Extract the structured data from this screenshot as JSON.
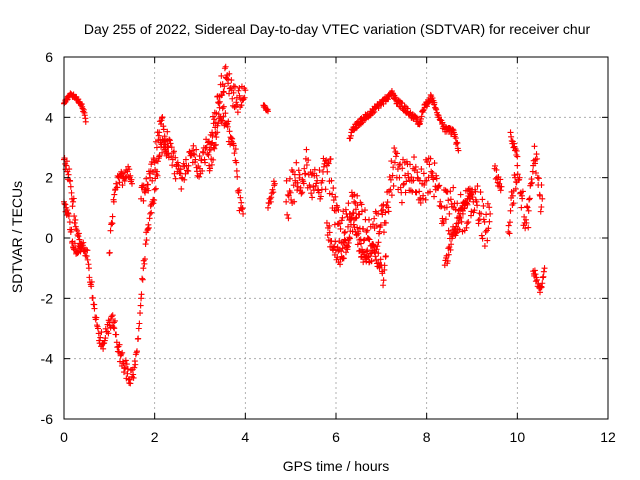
{
  "chart_data": {
    "type": "scatter",
    "title": "Day 255 of 2022, Sidereal Day-to-day VTEC variation (SDTVAR) for receiver chur",
    "xlabel": "GPS time / hours",
    "ylabel": "SDTVAR / TECUs",
    "xlim": [
      0,
      12
    ],
    "ylim": [
      -6,
      6
    ],
    "xticks": [
      0,
      2,
      4,
      6,
      8,
      10,
      12
    ],
    "yticks": [
      -6,
      -4,
      -2,
      0,
      2,
      4,
      6
    ],
    "grid": true,
    "marker": "+",
    "color": "#ff0000",
    "series": [
      {
        "name": "SDTVAR",
        "segments": [
          {
            "points": [
              [
                0.0,
                4.45
              ],
              [
                0.05,
                4.6
              ],
              [
                0.1,
                4.7
              ],
              [
                0.15,
                4.75
              ],
              [
                0.2,
                4.72
              ],
              [
                0.25,
                4.68
              ],
              [
                0.3,
                4.6
              ],
              [
                0.35,
                4.5
              ],
              [
                0.4,
                4.35
              ],
              [
                0.45,
                4.15
              ],
              [
                0.48,
                3.85
              ]
            ],
            "jitter": 0.06
          },
          {
            "points": [
              [
                0.0,
                2.6
              ],
              [
                0.05,
                2.4
              ],
              [
                0.1,
                2.1
              ],
              [
                0.15,
                1.7
              ],
              [
                0.2,
                1.2
              ],
              [
                0.25,
                0.6
              ],
              [
                0.3,
                0.1
              ],
              [
                0.35,
                -0.2
              ],
              [
                0.4,
                -0.3
              ],
              [
                0.45,
                -0.45
              ],
              [
                0.5,
                -0.6
              ],
              [
                0.55,
                -1.0
              ],
              [
                0.6,
                -1.6
              ],
              [
                0.65,
                -2.2
              ],
              [
                0.7,
                -2.7
              ],
              [
                0.75,
                -3.0
              ],
              [
                0.8,
                -3.3
              ],
              [
                0.85,
                -3.5
              ],
              [
                0.9,
                -3.4
              ],
              [
                0.95,
                -3.1
              ],
              [
                1.0,
                -2.8
              ],
              [
                1.05,
                -2.6
              ],
              [
                1.1,
                -2.8
              ],
              [
                1.15,
                -3.2
              ],
              [
                1.2,
                -3.6
              ],
              [
                1.25,
                -3.9
              ],
              [
                1.3,
                -4.1
              ],
              [
                1.35,
                -4.3
              ],
              [
                1.4,
                -4.5
              ],
              [
                1.45,
                -4.7
              ],
              [
                1.5,
                -4.6
              ],
              [
                1.55,
                -4.3
              ],
              [
                1.6,
                -3.8
              ],
              [
                1.65,
                -3.0
              ],
              [
                1.7,
                -2.0
              ],
              [
                1.75,
                -1.0
              ],
              [
                1.8,
                -0.2
              ],
              [
                1.85,
                0.3
              ],
              [
                1.9,
                0.8
              ],
              [
                1.95,
                1.2
              ],
              [
                2.0,
                1.6
              ],
              [
                2.05,
                2.2
              ],
              [
                2.1,
                2.7
              ],
              [
                2.15,
                3.1
              ],
              [
                2.2,
                3.0
              ],
              [
                2.3,
                2.8
              ]
            ],
            "jitter": 0.3
          },
          {
            "points": [
              [
                0.0,
                1.2
              ],
              [
                0.05,
                1.0
              ],
              [
                0.1,
                0.8
              ],
              [
                0.15,
                0.2
              ],
              [
                0.2,
                -0.3
              ],
              [
                0.3,
                -0.5
              ],
              [
                0.4,
                -0.3
              ]
            ],
            "jitter": 0.2
          },
          {
            "points": [
              [
                1.0,
                -0.5
              ],
              [
                1.05,
                0.5
              ],
              [
                1.1,
                1.2
              ],
              [
                1.15,
                1.8
              ],
              [
                1.2,
                2.0
              ],
              [
                1.3,
                2.0
              ],
              [
                1.4,
                2.2
              ],
              [
                1.45,
                2.0
              ],
              [
                1.5,
                1.8
              ]
            ],
            "jitter": 0.25
          },
          {
            "points": [
              [
                1.7,
                1.3
              ],
              [
                1.8,
                1.6
              ],
              [
                1.9,
                2.0
              ],
              [
                2.0,
                2.5
              ],
              [
                2.05,
                3.0
              ],
              [
                2.1,
                3.5
              ],
              [
                2.15,
                3.9
              ],
              [
                2.2,
                3.6
              ],
              [
                2.3,
                3.0
              ],
              [
                2.4,
                2.6
              ],
              [
                2.5,
                2.2
              ],
              [
                2.6,
                2.0
              ],
              [
                2.7,
                2.4
              ],
              [
                2.8,
                2.8
              ],
              [
                2.9,
                2.6
              ],
              [
                3.0,
                2.3
              ],
              [
                3.1,
                2.6
              ],
              [
                3.2,
                3.2
              ],
              [
                3.3,
                3.8
              ],
              [
                3.4,
                4.5
              ],
              [
                3.5,
                5.1
              ],
              [
                3.6,
                5.4
              ],
              [
                3.7,
                4.9
              ],
              [
                3.8,
                4.5
              ],
              [
                3.9,
                4.6
              ],
              [
                4.0,
                4.9
              ]
            ],
            "jitter": 0.45
          },
          {
            "points": [
              [
                3.2,
                2.4
              ],
              [
                3.3,
                3.0
              ],
              [
                3.4,
                3.8
              ],
              [
                3.5,
                4.3
              ],
              [
                3.6,
                3.8
              ],
              [
                3.7,
                3.2
              ],
              [
                3.8,
                2.5
              ],
              [
                3.85,
                1.5
              ],
              [
                3.9,
                1.0
              ],
              [
                3.95,
                0.8
              ]
            ],
            "jitter": 0.4
          },
          {
            "points": [
              [
                4.4,
                4.4
              ],
              [
                4.45,
                4.3
              ],
              [
                4.5,
                4.2
              ]
            ],
            "jitter": 0.05
          },
          {
            "points": [
              [
                4.5,
                1.0
              ],
              [
                4.55,
                1.3
              ],
              [
                4.6,
                1.6
              ],
              [
                4.65,
                1.8
              ]
            ],
            "jitter": 0.2
          },
          {
            "points": [
              [
                4.9,
                1.2
              ],
              [
                5.0,
                1.5
              ],
              [
                5.1,
                1.9
              ],
              [
                5.2,
                2.1
              ],
              [
                5.3,
                2.3
              ],
              [
                5.4,
                2.1
              ],
              [
                5.5,
                1.7
              ],
              [
                5.6,
                1.6
              ],
              [
                5.7,
                1.9
              ],
              [
                5.8,
                2.4
              ],
              [
                5.9,
                1.9
              ],
              [
                6.0,
                0.9
              ],
              [
                6.1,
                0.3
              ],
              [
                6.2,
                0.2
              ],
              [
                6.3,
                0.8
              ],
              [
                6.4,
                1.2
              ],
              [
                6.5,
                0.8
              ],
              [
                6.6,
                0.3
              ],
              [
                6.7,
                0.0
              ],
              [
                6.8,
                -0.2
              ],
              [
                6.9,
                0.4
              ],
              [
                7.0,
                0.9
              ],
              [
                7.1,
                0.5
              ],
              [
                7.2,
                1.6
              ],
              [
                7.3,
                2.5
              ],
              [
                7.4,
                2.0
              ],
              [
                7.5,
                1.8
              ],
              [
                7.6,
                2.0
              ],
              [
                7.7,
                2.3
              ],
              [
                7.8,
                2.0
              ],
              [
                7.9,
                1.8
              ],
              [
                8.0,
                1.9
              ],
              [
                8.1,
                2.2
              ],
              [
                8.2,
                1.6
              ],
              [
                8.3,
                1.2
              ],
              [
                8.4,
                1.0
              ],
              [
                8.5,
                0.8
              ],
              [
                8.6,
                1.0
              ],
              [
                8.7,
                0.9
              ],
              [
                8.8,
                0.8
              ],
              [
                8.9,
                1.1
              ],
              [
                9.0,
                1.5
              ],
              [
                9.1,
                1.2
              ],
              [
                9.2,
                0.8
              ],
              [
                9.3,
                0.2
              ],
              [
                9.4,
                0.8
              ]
            ],
            "jitter": 0.75
          },
          {
            "points": [
              [
                5.8,
                0.5
              ],
              [
                5.9,
                -0.1
              ],
              [
                6.0,
                -0.4
              ],
              [
                6.1,
                -0.7
              ],
              [
                6.2,
                -0.3
              ],
              [
                6.4,
                0.6
              ],
              [
                6.6,
                -0.8
              ],
              [
                6.8,
                -0.4
              ],
              [
                7.0,
                -0.9
              ],
              [
                7.05,
                -1.4
              ],
              [
                7.1,
                -0.6
              ]
            ],
            "jitter": 0.35
          },
          {
            "points": [
              [
                6.3,
                3.3
              ],
              [
                6.35,
                3.6
              ],
              [
                7.25,
                4.8
              ],
              [
                7.3,
                4.6
              ],
              [
                7.85,
                3.8
              ],
              [
                7.9,
                4.2
              ],
              [
                8.1,
                4.7
              ],
              [
                8.2,
                4.3
              ],
              [
                8.3,
                3.9
              ],
              [
                8.4,
                3.6
              ],
              [
                8.6,
                3.5
              ],
              [
                8.7,
                2.9
              ]
            ],
            "jitter": 0.1
          },
          {
            "points": [
              [
                8.4,
                -0.9
              ],
              [
                8.5,
                -0.3
              ],
              [
                8.6,
                0.2
              ],
              [
                8.7,
                0.5
              ],
              [
                8.8,
                0.9
              ],
              [
                8.9,
                1.3
              ],
              [
                9.0,
                1.6
              ]
            ],
            "jitter": 0.25
          },
          {
            "points": [
              [
                9.5,
                2.3
              ],
              [
                9.55,
                2.0
              ],
              [
                9.6,
                1.8
              ],
              [
                9.65,
                1.7
              ]
            ],
            "jitter": 0.2
          },
          {
            "points": [
              [
                9.8,
                0.2
              ],
              [
                9.85,
                0.9
              ],
              [
                9.9,
                1.4
              ],
              [
                9.95,
                2.0
              ],
              [
                10.0,
                2.4
              ],
              [
                10.05,
                2.0
              ],
              [
                10.1,
                1.4
              ],
              [
                10.15,
                0.7
              ],
              [
                10.2,
                0.5
              ],
              [
                10.25,
                0.9
              ],
              [
                10.3,
                1.8
              ],
              [
                10.35,
                2.4
              ],
              [
                10.4,
                2.6
              ],
              [
                10.45,
                2.0
              ],
              [
                10.5,
                1.4
              ],
              [
                10.55,
                1.3
              ]
            ],
            "jitter": 0.55
          },
          {
            "points": [
              [
                9.85,
                3.5
              ],
              [
                9.9,
                3.2
              ],
              [
                9.95,
                2.9
              ],
              [
                10.0,
                2.7
              ]
            ],
            "jitter": 0.15
          },
          {
            "points": [
              [
                10.35,
                -1.1
              ],
              [
                10.4,
                -1.2
              ],
              [
                10.45,
                -1.6
              ],
              [
                10.5,
                -1.8
              ],
              [
                10.55,
                -1.5
              ],
              [
                10.6,
                -1.0
              ]
            ],
            "jitter": 0.15
          }
        ]
      }
    ]
  }
}
